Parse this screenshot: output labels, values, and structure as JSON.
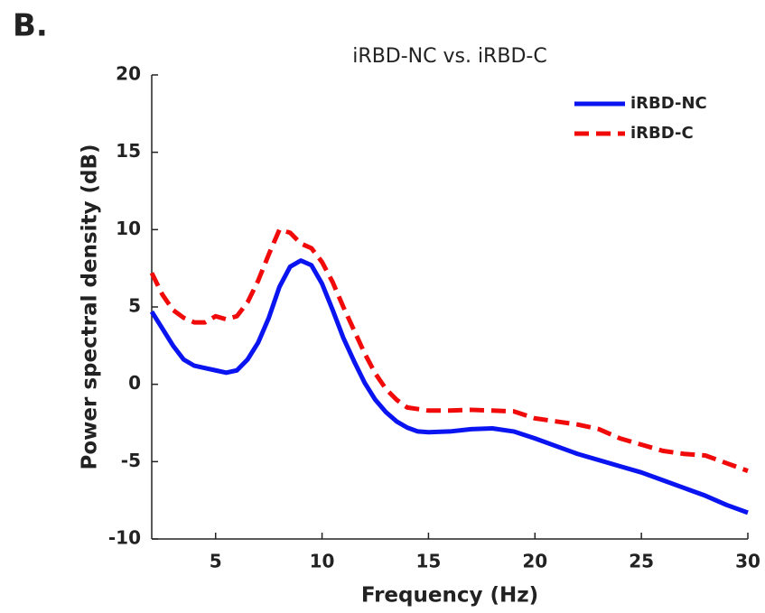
{
  "panel_label": "B.",
  "chart_data": {
    "type": "line",
    "title": "iRBD-NC vs. iRBD-C",
    "x_label": "Frequency (Hz)",
    "y_label": "Power spectral density (dB)",
    "x": [
      2,
      2.5,
      3,
      3.5,
      4,
      4.5,
      5,
      5.5,
      6,
      6.5,
      7,
      7.5,
      8,
      8.5,
      9,
      9.5,
      10,
      10.5,
      11,
      11.5,
      12,
      12.5,
      13,
      13.5,
      14,
      14.5,
      15,
      16,
      17,
      18,
      19,
      20,
      21,
      22,
      23,
      24,
      25,
      26,
      27,
      28,
      29,
      30
    ],
    "series": [
      {
        "name": "iRBD-NC",
        "color": "#0a14f0",
        "dash": false,
        "values": [
          4.7,
          3.6,
          2.5,
          1.6,
          1.2,
          1.05,
          0.9,
          0.75,
          0.9,
          1.6,
          2.7,
          4.3,
          6.3,
          7.6,
          8.0,
          7.7,
          6.5,
          4.8,
          3.0,
          1.5,
          0.1,
          -1.0,
          -1.8,
          -2.4,
          -2.8,
          -3.05,
          -3.1,
          -3.05,
          -2.9,
          -2.85,
          -3.05,
          -3.5,
          -4.0,
          -4.5,
          -4.9,
          -5.3,
          -5.7,
          -6.2,
          -6.7,
          -7.2,
          -7.8,
          -8.3
        ]
      },
      {
        "name": "iRBD-C",
        "color": "#f00a0a",
        "dash": true,
        "values": [
          7.2,
          5.8,
          4.8,
          4.3,
          4.0,
          4.0,
          4.4,
          4.2,
          4.4,
          5.3,
          6.7,
          8.4,
          10.0,
          9.8,
          9.1,
          8.8,
          7.9,
          6.6,
          5.0,
          3.5,
          2.0,
          0.7,
          -0.3,
          -1.0,
          -1.5,
          -1.6,
          -1.7,
          -1.7,
          -1.65,
          -1.7,
          -1.75,
          -2.2,
          -2.4,
          -2.6,
          -2.9,
          -3.5,
          -3.9,
          -4.3,
          -4.5,
          -4.6,
          -5.1,
          -5.6
        ]
      }
    ],
    "xlim": [
      2,
      30
    ],
    "ylim": [
      -10,
      20
    ],
    "xticks": [
      5,
      10,
      15,
      20,
      25,
      30
    ],
    "yticks": [
      -10,
      -5,
      0,
      5,
      10,
      15,
      20
    ],
    "grid": false,
    "legend": "upper right"
  }
}
